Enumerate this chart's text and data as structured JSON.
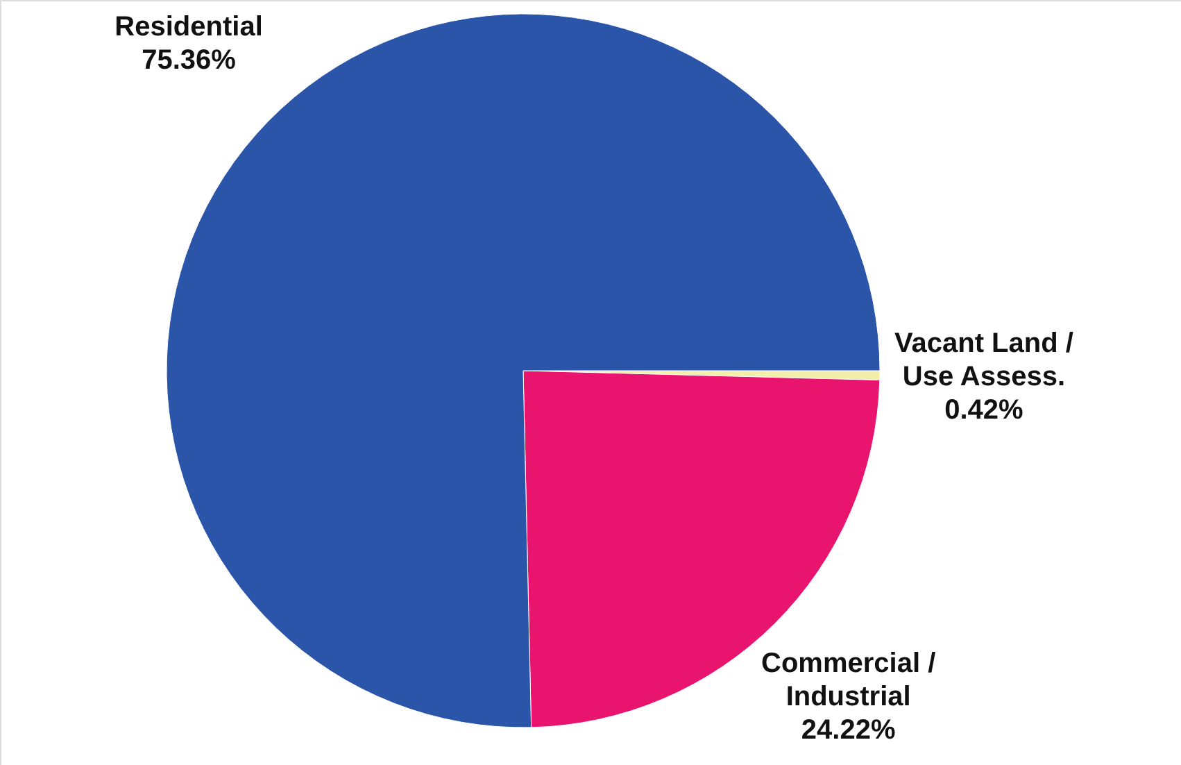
{
  "chart_data": {
    "type": "pie",
    "categories": [
      "Vacant Land / Use Assess.",
      "Commercial / Industrial",
      "Residential"
    ],
    "values": [
      0.42,
      24.22,
      75.36
    ],
    "colors": [
      "#f3eea8",
      "#e8146e",
      "#2a55a8"
    ],
    "value_labels": [
      "0.42%",
      "24.22%",
      "75.36%"
    ]
  }
}
